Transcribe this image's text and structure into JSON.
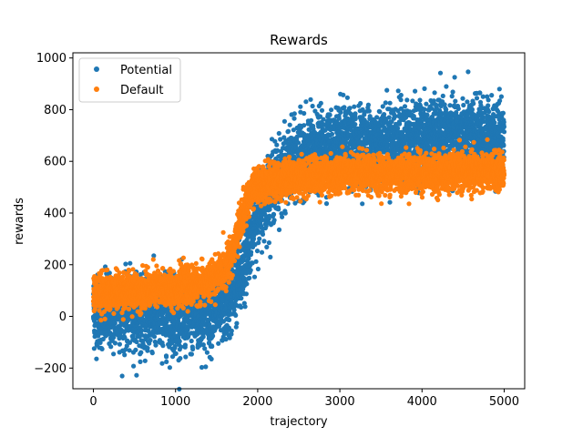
{
  "chart_data": {
    "type": "scatter",
    "title": "Rewards",
    "xlabel": "trajectory",
    "ylabel": "rewards",
    "xlim": [
      -250,
      5250
    ],
    "ylim": [
      -280,
      1020
    ],
    "xticks": [
      0,
      1000,
      2000,
      3000,
      4000,
      5000
    ],
    "yticks": [
      -200,
      0,
      200,
      400,
      600,
      800,
      1000
    ],
    "grid": false,
    "legend_position": "top-left",
    "series": [
      {
        "name": "Potential",
        "color": "#1f77b4",
        "point_count": 5000,
        "trend": [
          {
            "x": 0,
            "y": 20
          },
          {
            "x": 500,
            "y": 10
          },
          {
            "x": 1000,
            "y": 0
          },
          {
            "x": 1300,
            "y": 0
          },
          {
            "x": 1600,
            "y": 40
          },
          {
            "x": 1800,
            "y": 150
          },
          {
            "x": 1900,
            "y": 300
          },
          {
            "x": 2000,
            "y": 400
          },
          {
            "x": 2200,
            "y": 520
          },
          {
            "x": 2500,
            "y": 620
          },
          {
            "x": 3000,
            "y": 660
          },
          {
            "x": 4000,
            "y": 690
          },
          {
            "x": 5000,
            "y": 700
          }
        ],
        "noise_sd": 70
      },
      {
        "name": "Default",
        "color": "#ff7f0e",
        "point_count": 5000,
        "trend": [
          {
            "x": 0,
            "y": 90
          },
          {
            "x": 500,
            "y": 100
          },
          {
            "x": 1000,
            "y": 110
          },
          {
            "x": 1400,
            "y": 130
          },
          {
            "x": 1600,
            "y": 180
          },
          {
            "x": 1700,
            "y": 260
          },
          {
            "x": 1800,
            "y": 380
          },
          {
            "x": 1900,
            "y": 470
          },
          {
            "x": 2000,
            "y": 510
          },
          {
            "x": 2500,
            "y": 540
          },
          {
            "x": 3000,
            "y": 550
          },
          {
            "x": 4000,
            "y": 555
          },
          {
            "x": 5000,
            "y": 560
          }
        ],
        "noise_sd": 35
      }
    ]
  }
}
